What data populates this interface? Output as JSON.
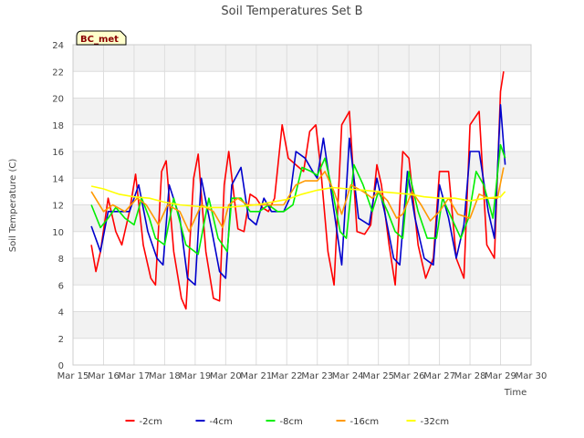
{
  "chart_data": {
    "type": "line",
    "title": "Soil Temperatures Set B",
    "xlabel": "Time",
    "ylabel": "Soil Temperature (C)",
    "station_label": "BC_met",
    "x_ticks": [
      "Mar 15",
      "Mar 16",
      "Mar 17",
      "Mar 18",
      "Mar 19",
      "Mar 20",
      "Mar 21",
      "Mar 22",
      "Mar 23",
      "Mar 24",
      "Mar 25",
      "Mar 26",
      "Mar 27",
      "Mar 28",
      "Mar 29",
      "Mar 30"
    ],
    "xlim": [
      15,
      30
    ],
    "ylim": [
      0,
      24
    ],
    "y_ticks": [
      0,
      2,
      4,
      6,
      8,
      10,
      12,
      14,
      16,
      18,
      20,
      22,
      24
    ],
    "grid": true,
    "legend_position": "bottom",
    "x_unit": "day of March",
    "series": [
      {
        "name": "-2cm",
        "color": "#ff0000",
        "x": [
          15.6,
          15.75,
          15.9,
          16.15,
          16.4,
          16.6,
          16.85,
          17.05,
          17.3,
          17.55,
          17.7,
          17.9,
          18.05,
          18.3,
          18.55,
          18.7,
          18.95,
          19.1,
          19.35,
          19.6,
          19.8,
          19.95,
          20.1,
          20.4,
          20.6,
          20.8,
          21.0,
          21.2,
          21.4,
          21.6,
          21.85,
          22.05,
          22.3,
          22.55,
          22.75,
          22.95,
          23.1,
          23.35,
          23.55,
          23.8,
          24.05,
          24.3,
          24.55,
          24.75,
          24.95,
          25.1,
          25.35,
          25.55,
          25.8,
          26.0,
          26.3,
          26.55,
          26.8,
          27.0,
          27.3,
          27.55,
          27.8,
          28.0,
          28.3,
          28.55,
          28.8,
          29.0,
          29.1
        ],
        "y": [
          9.0,
          7.0,
          8.5,
          12.5,
          10.0,
          9.0,
          11.5,
          14.3,
          9.0,
          6.5,
          6.0,
          14.5,
          15.3,
          8.5,
          5.0,
          4.2,
          14.0,
          15.8,
          8.5,
          5.0,
          4.8,
          13.5,
          16.0,
          10.2,
          10.0,
          12.8,
          12.5,
          11.8,
          11.5,
          12.5,
          18.0,
          15.5,
          15.0,
          14.5,
          17.5,
          18.0,
          15.0,
          8.5,
          6.0,
          18.0,
          19.0,
          10.0,
          9.8,
          10.5,
          15.0,
          13.5,
          9.0,
          6.0,
          16.0,
          15.5,
          9.0,
          6.5,
          8.0,
          14.5,
          14.5,
          8.0,
          6.5,
          18.0,
          19.0,
          9.0,
          8.0,
          20.5,
          22.0
        ]
      },
      {
        "name": "-4cm",
        "color": "#0000cc",
        "x": [
          15.6,
          15.9,
          16.15,
          16.5,
          16.85,
          17.15,
          17.45,
          17.75,
          17.95,
          18.15,
          18.5,
          18.75,
          19.0,
          19.2,
          19.55,
          19.8,
          20.0,
          20.2,
          20.5,
          20.75,
          21.0,
          21.25,
          21.5,
          21.7,
          21.9,
          22.1,
          22.3,
          22.6,
          22.85,
          23.0,
          23.2,
          23.55,
          23.8,
          24.05,
          24.35,
          24.7,
          24.95,
          25.2,
          25.5,
          25.7,
          25.95,
          26.2,
          26.5,
          26.8,
          27.0,
          27.3,
          27.55,
          27.8,
          28.0,
          28.3,
          28.6,
          28.8,
          29.0,
          29.15
        ],
        "y": [
          10.4,
          8.5,
          11.5,
          11.5,
          11.5,
          13.5,
          10.0,
          8.0,
          7.5,
          13.5,
          11.0,
          6.5,
          6.0,
          14.0,
          10.0,
          7.0,
          6.5,
          13.5,
          14.8,
          11.0,
          10.5,
          12.5,
          11.5,
          11.5,
          11.5,
          12.5,
          16.0,
          15.5,
          14.5,
          14.0,
          17.0,
          11.5,
          7.5,
          17.0,
          11.0,
          10.5,
          14.0,
          11.5,
          8.0,
          7.5,
          14.5,
          11.0,
          8.0,
          7.5,
          13.5,
          11.0,
          8.0,
          10.5,
          16.0,
          16.0,
          11.5,
          9.5,
          19.5,
          15.0
        ]
      },
      {
        "name": "-8cm",
        "color": "#00ee00",
        "x": [
          15.6,
          15.9,
          16.15,
          16.4,
          16.7,
          17.0,
          17.25,
          17.5,
          17.7,
          18.0,
          18.3,
          18.7,
          19.1,
          19.45,
          19.75,
          20.05,
          20.2,
          20.5,
          20.8,
          21.1,
          21.4,
          21.7,
          21.9,
          22.2,
          22.5,
          22.8,
          23.0,
          23.25,
          23.5,
          23.75,
          23.95,
          24.2,
          24.5,
          24.8,
          25.0,
          25.3,
          25.55,
          25.8,
          26.0,
          26.3,
          26.6,
          26.9,
          27.1,
          27.4,
          27.7,
          27.95,
          28.2,
          28.45,
          28.75,
          29.0,
          29.15
        ],
        "y": [
          12.0,
          10.3,
          11.0,
          11.8,
          11.0,
          10.5,
          12.5,
          11.0,
          9.5,
          9.0,
          12.5,
          9.0,
          8.3,
          12.5,
          9.5,
          8.5,
          12.5,
          12.5,
          11.5,
          11.5,
          12.0,
          11.5,
          11.5,
          12.0,
          14.8,
          14.5,
          14.2,
          15.5,
          13.0,
          10.0,
          9.5,
          15.0,
          13.5,
          11.5,
          13.0,
          11.5,
          10.0,
          9.5,
          14.5,
          11.5,
          9.5,
          9.5,
          12.5,
          11.0,
          9.5,
          11.0,
          14.5,
          13.5,
          11.0,
          16.5,
          15.5
        ]
      },
      {
        "name": "-16cm",
        "color": "#ff9900",
        "x": [
          15.6,
          16.0,
          16.3,
          16.7,
          17.1,
          17.4,
          17.8,
          18.1,
          18.5,
          18.8,
          19.2,
          19.6,
          19.9,
          20.1,
          20.4,
          20.7,
          21.0,
          21.3,
          21.6,
          21.9,
          22.3,
          22.6,
          23.0,
          23.25,
          23.55,
          23.8,
          24.1,
          24.5,
          24.8,
          25.0,
          25.3,
          25.6,
          25.8,
          26.1,
          26.4,
          26.7,
          27.0,
          27.3,
          27.6,
          28.0,
          28.3,
          28.6,
          28.9,
          29.1
        ],
        "y": [
          13.0,
          11.5,
          12.0,
          11.5,
          12.5,
          12.0,
          10.5,
          12.0,
          11.5,
          10.0,
          12.0,
          11.5,
          10.3,
          12.0,
          12.5,
          12.0,
          12.0,
          12.0,
          12.0,
          12.0,
          13.5,
          13.8,
          13.8,
          14.5,
          13.0,
          11.3,
          13.5,
          13.0,
          12.5,
          13.0,
          12.3,
          11.0,
          11.3,
          13.0,
          12.0,
          10.8,
          11.5,
          12.5,
          11.3,
          11.0,
          12.8,
          12.5,
          12.5,
          14.8
        ]
      },
      {
        "name": "-32cm",
        "color": "#ffff00",
        "x": [
          15.6,
          16.0,
          16.5,
          17.0,
          17.5,
          18.0,
          18.5,
          19.0,
          19.5,
          20.0,
          20.5,
          21.0,
          21.5,
          22.0,
          22.5,
          23.0,
          23.5,
          24.0,
          24.5,
          25.0,
          25.5,
          26.0,
          26.5,
          27.0,
          27.5,
          28.0,
          28.5,
          29.0,
          29.15
        ],
        "y": [
          13.4,
          13.2,
          12.8,
          12.6,
          12.5,
          12.2,
          12.0,
          11.9,
          11.8,
          11.8,
          11.9,
          12.0,
          12.2,
          12.4,
          12.8,
          13.1,
          13.3,
          13.2,
          13.1,
          13.0,
          12.9,
          12.8,
          12.6,
          12.5,
          12.5,
          12.3,
          12.5,
          12.6,
          13.0
        ]
      }
    ]
  }
}
